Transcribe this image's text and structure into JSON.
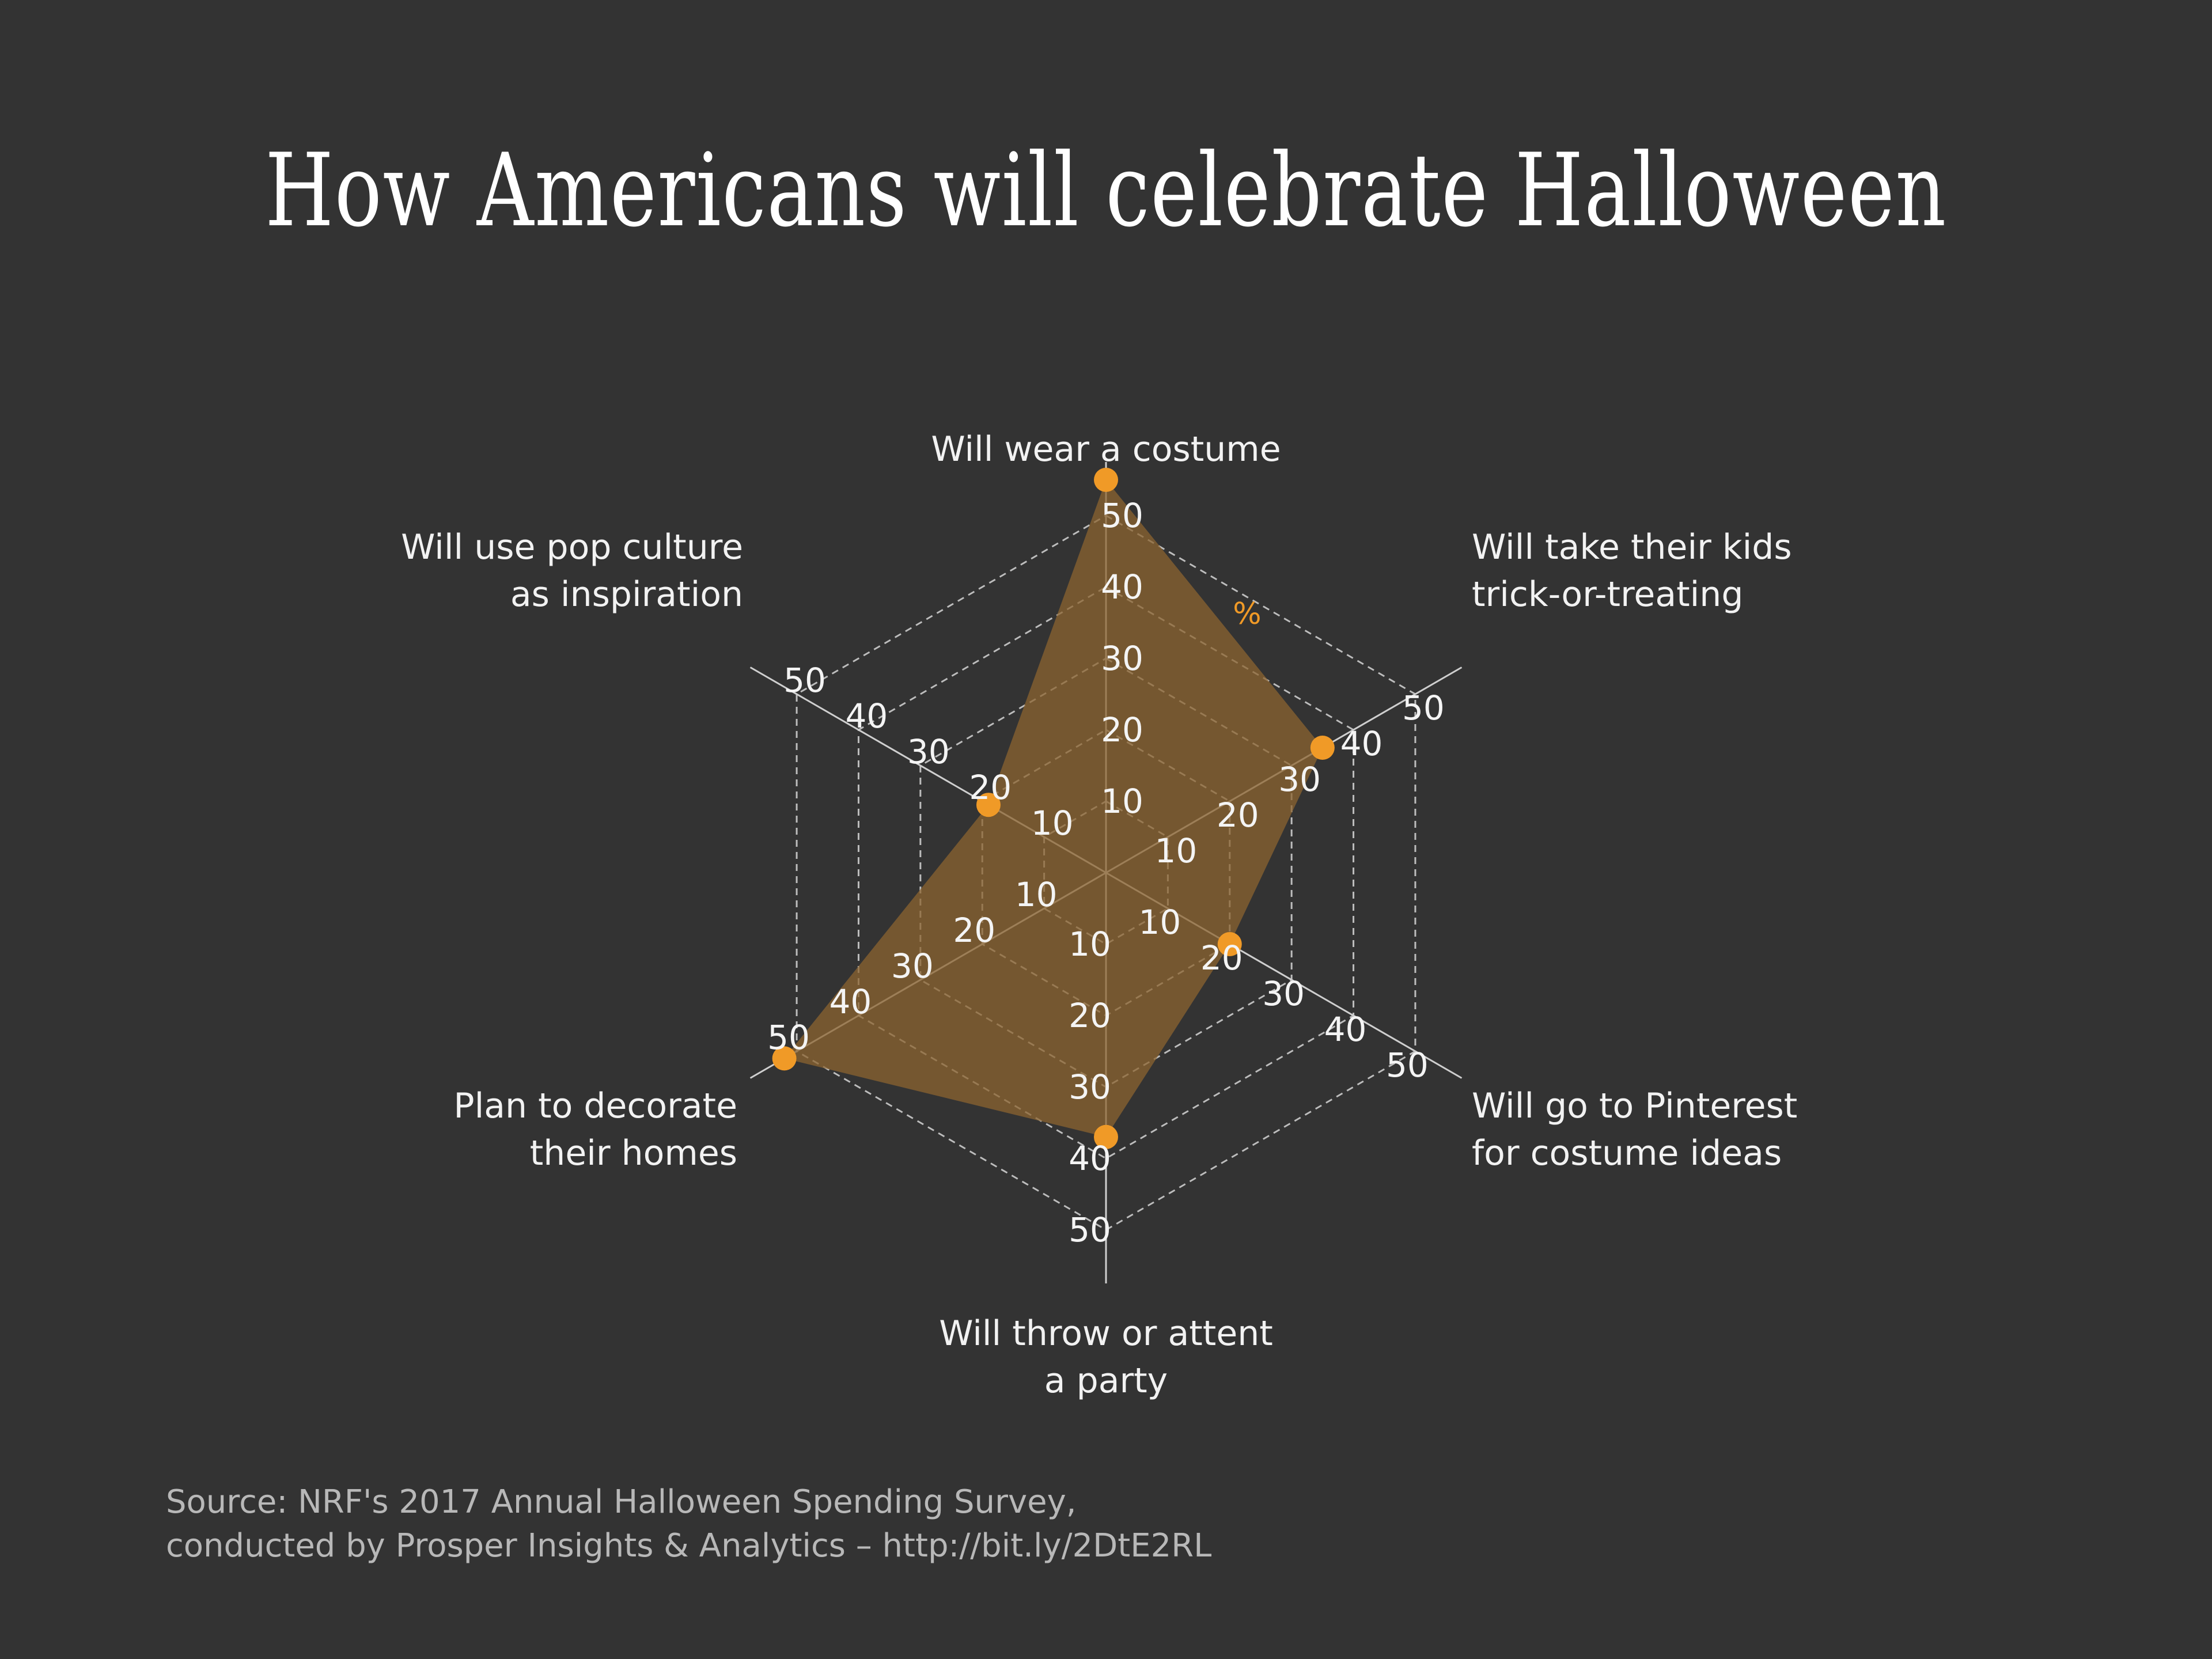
{
  "title": "How Americans will celebrate Halloween",
  "source": {
    "line1": "Source: NRF's 2017 Annual Halloween Spending Survey,",
    "line2": "conducted by Prosper Insights & Analytics – http://bit.ly/2DtE2RL"
  },
  "chart_data": {
    "type": "radar",
    "unit_label": "%",
    "categories": [
      [
        "Will wear a costume"
      ],
      [
        "Will take their kids",
        "trick-or-treating"
      ],
      [
        "Will go to Pinterest",
        "for costume ideas"
      ],
      [
        "Will throw or attent",
        "a party"
      ],
      [
        "Plan to decorate",
        "their homes"
      ],
      [
        "Will use pop culture",
        "as inspiration"
      ]
    ],
    "series": [
      {
        "values": [
          55,
          35,
          20,
          37,
          52,
          19
        ]
      }
    ],
    "ticks": [
      10,
      20,
      30,
      40,
      50
    ],
    "rlim": [
      0,
      50
    ],
    "colors": {
      "fill": "#8c6430",
      "marker": "#f09a27",
      "grid": "#bdbdbd",
      "axis": "#cfcfcf"
    }
  }
}
